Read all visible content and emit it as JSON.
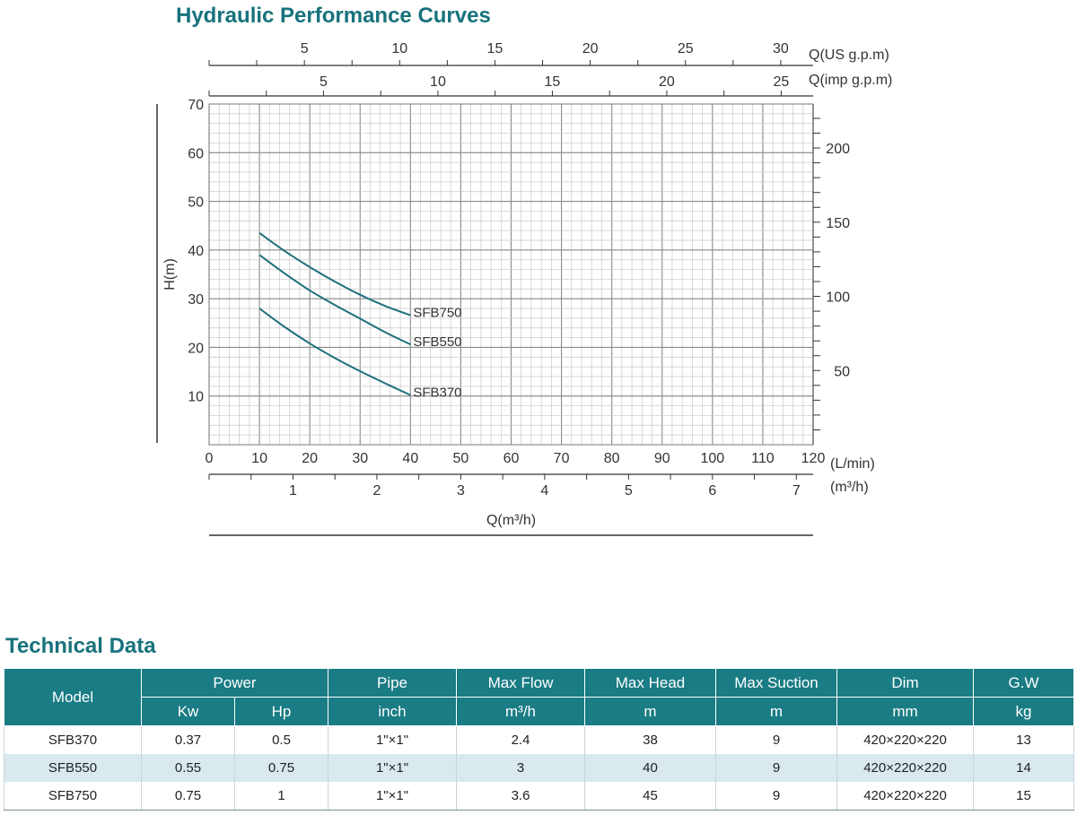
{
  "chart_title": "Hydraulic Performance Curves",
  "table_title": "Technical Data",
  "chart_data": {
    "type": "line",
    "title": "Hydraulic Performance Curves",
    "xlabel": "Q(m³/h)",
    "ylabel": "H(m)",
    "x_unit": "L/min",
    "xlim": [
      0,
      120
    ],
    "ylim": [
      0,
      70
    ],
    "grid": true,
    "series": [
      {
        "name": "SFB370",
        "x": [
          10,
          15,
          20,
          25,
          30,
          35,
          40
        ],
        "y": [
          28,
          24.2,
          20.8,
          17.8,
          15.1,
          12.6,
          10.2
        ]
      },
      {
        "name": "SFB550",
        "x": [
          10,
          15,
          20,
          25,
          30,
          35,
          40
        ],
        "y": [
          39,
          35.2,
          31.7,
          28.7,
          25.9,
          23.1,
          20.6
        ]
      },
      {
        "name": "SFB750",
        "x": [
          10,
          15,
          20,
          25,
          30,
          35,
          40
        ],
        "y": [
          43.5,
          39.8,
          36.5,
          33.5,
          30.8,
          28.5,
          26.6
        ]
      }
    ],
    "axes": {
      "left": {
        "label": "H(m)",
        "ticks": [
          10,
          20,
          30,
          40,
          50,
          60,
          70
        ]
      },
      "right": {
        "label": "",
        "ticks": [
          50,
          100,
          150,
          200
        ]
      },
      "bottom_lmin": {
        "unit": "(L/min)",
        "ticks": [
          0,
          10,
          20,
          30,
          40,
          50,
          60,
          70,
          80,
          90,
          100,
          110,
          120
        ]
      },
      "bottom_m3h": {
        "unit": "(m³/h)",
        "label": "Q(m³/h)",
        "ticks": [
          1,
          2,
          3,
          4,
          5,
          6,
          7
        ]
      },
      "top_us": {
        "unit": "Q(US g.p.m)",
        "ticks": [
          5,
          10,
          15,
          20,
          25,
          30
        ]
      },
      "top_imp": {
        "unit": "Q(imp g.p.m)",
        "ticks": [
          5,
          10,
          15,
          20,
          25
        ]
      }
    }
  },
  "table": {
    "header_row1": {
      "model": "Model",
      "power": "Power",
      "pipe": "Pipe",
      "max_flow": "Max Flow",
      "max_head": "Max Head",
      "max_suction": "Max Suction",
      "dim": "Dim",
      "gw": "G.W"
    },
    "header_row2": {
      "kw": "Kw",
      "hp": "Hp",
      "pipe_unit": "inch",
      "flow_unit": "m³/h",
      "head_unit": "m",
      "suction_unit": "m",
      "dim_unit": "mm",
      "gw_unit": "kg"
    },
    "rows": [
      {
        "model": "SFB370",
        "kw": "0.37",
        "hp": "0.5",
        "pipe": "1\"×1\"",
        "flow": "2.4",
        "head": "38",
        "suction": "9",
        "dim": "420×220×220",
        "gw": "13"
      },
      {
        "model": "SFB550",
        "kw": "0.55",
        "hp": "0.75",
        "pipe": "1\"×1\"",
        "flow": "3",
        "head": "40",
        "suction": "9",
        "dim": "420×220×220",
        "gw": "14"
      },
      {
        "model": "SFB750",
        "kw": "0.75",
        "hp": "1",
        "pipe": "1\"×1\"",
        "flow": "3.6",
        "head": "45",
        "suction": "9",
        "dim": "420×220×220",
        "gw": "15"
      }
    ]
  },
  "colors": {
    "accent": "#17727c",
    "header_bg": "#1a7c84",
    "curve": "#1f6f7c",
    "grid_minor": "#c8c8c8",
    "grid_major": "#8a8a8a",
    "row_alt": "#d9e9ee"
  }
}
